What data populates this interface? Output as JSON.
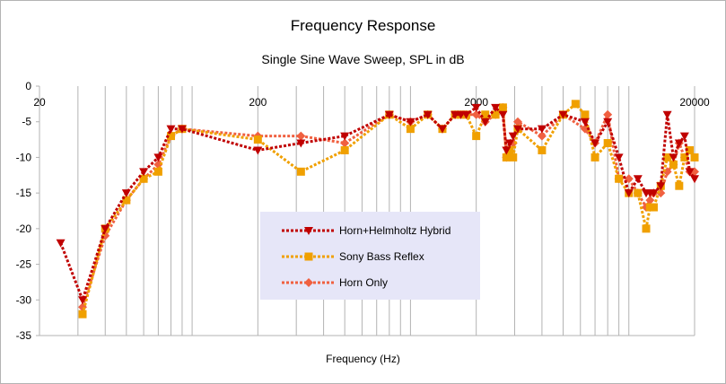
{
  "chart_data": {
    "type": "line",
    "title": "Frequency Response",
    "subtitle": "Single Sine Wave Sweep, SPL in dB",
    "xlabel": "Frequency (Hz)",
    "ylabel": "",
    "x_scale": "log",
    "xlim": [
      20,
      20000
    ],
    "ylim": [
      -35,
      0
    ],
    "x_ticks": [
      20,
      200,
      2000,
      20000
    ],
    "y_ticks": [
      0,
      -5,
      -10,
      -15,
      -20,
      -25,
      -30,
      -35
    ],
    "grid": "vertical-log",
    "legend_position": "center",
    "series": [
      {
        "name": "Horn+Helmholtz Hybrid",
        "color": "#c00000",
        "marker": "triangle-down",
        "points": [
          [
            25,
            -22
          ],
          [
            31.5,
            -30
          ],
          [
            40,
            -20
          ],
          [
            50,
            -15
          ],
          [
            60,
            -12
          ],
          [
            70,
            -10
          ],
          [
            80,
            -6
          ],
          [
            90,
            -6
          ],
          [
            200,
            -9
          ],
          [
            315,
            -8
          ],
          [
            500,
            -7
          ],
          [
            800,
            -4
          ],
          [
            1000,
            -5
          ],
          [
            1200,
            -4
          ],
          [
            1400,
            -6
          ],
          [
            1600,
            -4
          ],
          [
            1700,
            -4
          ],
          [
            1800,
            -4
          ],
          [
            2000,
            -3
          ],
          [
            2200,
            -5
          ],
          [
            2450,
            -3
          ],
          [
            2650,
            -4
          ],
          [
            2750,
            -9
          ],
          [
            2850,
            -8
          ],
          [
            2950,
            -7
          ],
          [
            3100,
            -6
          ],
          [
            4000,
            -6
          ],
          [
            5000,
            -4
          ],
          [
            6300,
            -5
          ],
          [
            7000,
            -8
          ],
          [
            8000,
            -5
          ],
          [
            9000,
            -10
          ],
          [
            10000,
            -15
          ],
          [
            11000,
            -13
          ],
          [
            12000,
            -15
          ],
          [
            12500,
            -15
          ],
          [
            13000,
            -15
          ],
          [
            14000,
            -14
          ],
          [
            15000,
            -4
          ],
          [
            16000,
            -10
          ],
          [
            17000,
            -8
          ],
          [
            18000,
            -7
          ],
          [
            19000,
            -12
          ],
          [
            20000,
            -13
          ]
        ]
      },
      {
        "name": "Sony Bass Reflex",
        "color": "#f0a000",
        "marker": "square",
        "points": [
          [
            31.5,
            -32
          ],
          [
            40,
            -20
          ],
          [
            50,
            -16
          ],
          [
            60,
            -13
          ],
          [
            70,
            -12
          ],
          [
            80,
            -7
          ],
          [
            90,
            -6
          ],
          [
            200,
            -7.5
          ],
          [
            315,
            -12
          ],
          [
            500,
            -9
          ],
          [
            800,
            -4
          ],
          [
            1000,
            -6
          ],
          [
            1200,
            -4
          ],
          [
            1400,
            -6
          ],
          [
            1600,
            -4
          ],
          [
            1700,
            -4
          ],
          [
            1800,
            -4
          ],
          [
            2000,
            -7
          ],
          [
            2200,
            -4
          ],
          [
            2450,
            -4
          ],
          [
            2650,
            -3
          ],
          [
            2750,
            -10
          ],
          [
            2850,
            -9
          ],
          [
            2950,
            -10
          ],
          [
            3100,
            -6
          ],
          [
            4000,
            -9
          ],
          [
            5000,
            -4
          ],
          [
            5700,
            -2.5
          ],
          [
            6300,
            -4
          ],
          [
            7000,
            -10
          ],
          [
            8000,
            -8
          ],
          [
            9000,
            -13
          ],
          [
            10000,
            -15
          ],
          [
            11000,
            -15
          ],
          [
            12000,
            -20
          ],
          [
            12500,
            -17
          ],
          [
            13000,
            -17
          ],
          [
            14000,
            -14
          ],
          [
            15000,
            -10
          ],
          [
            16000,
            -11
          ],
          [
            17000,
            -14
          ],
          [
            18000,
            -10
          ],
          [
            19000,
            -9
          ],
          [
            20000,
            -10
          ]
        ]
      },
      {
        "name": "Horn Only",
        "color": "#f06040",
        "marker": "diamond",
        "points": [
          [
            31.5,
            -31
          ],
          [
            40,
            -21
          ],
          [
            50,
            -16
          ],
          [
            60,
            -13
          ],
          [
            70,
            -11
          ],
          [
            80,
            -7
          ],
          [
            90,
            -6
          ],
          [
            200,
            -7
          ],
          [
            315,
            -7
          ],
          [
            500,
            -8
          ],
          [
            800,
            -4
          ],
          [
            1000,
            -5
          ],
          [
            1200,
            -4
          ],
          [
            1400,
            -6
          ],
          [
            1600,
            -4
          ],
          [
            1700,
            -4
          ],
          [
            1800,
            -4
          ],
          [
            2000,
            -4
          ],
          [
            2200,
            -5
          ],
          [
            2450,
            -4
          ],
          [
            2650,
            -3
          ],
          [
            2750,
            -10
          ],
          [
            2850,
            -9
          ],
          [
            2950,
            -8
          ],
          [
            3100,
            -5
          ],
          [
            4000,
            -7
          ],
          [
            5000,
            -4
          ],
          [
            6300,
            -6
          ],
          [
            7000,
            -8
          ],
          [
            8000,
            -4
          ],
          [
            9000,
            -13
          ],
          [
            10000,
            -13
          ],
          [
            11000,
            -15
          ],
          [
            12000,
            -17
          ],
          [
            12500,
            -16
          ],
          [
            13000,
            -15
          ],
          [
            14000,
            -15
          ],
          [
            15000,
            -12
          ],
          [
            16000,
            -11
          ],
          [
            17000,
            -8
          ],
          [
            18000,
            -10
          ],
          [
            19000,
            -12
          ],
          [
            20000,
            -12
          ]
        ]
      }
    ]
  }
}
